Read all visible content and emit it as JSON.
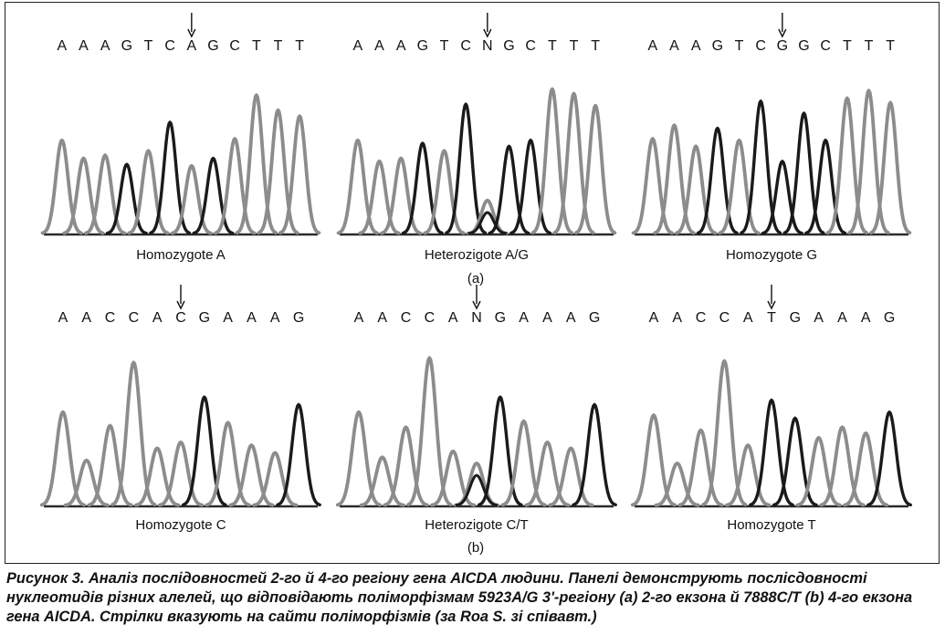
{
  "figure": {
    "subfigure_a_label": "(a)",
    "subfigure_b_label": "(b)",
    "panels": [
      {
        "sequence": [
          "A",
          "A",
          "A",
          "G",
          "T",
          "C",
          "A",
          "G",
          "C",
          "T",
          "T",
          "T"
        ],
        "arrow_index": 6,
        "label": "Homozygote A",
        "peaks": [
          {
            "h": 0.62,
            "c": "g"
          },
          {
            "h": 0.5,
            "c": "g"
          },
          {
            "h": 0.52,
            "c": "g"
          },
          {
            "h": 0.46,
            "c": "b"
          },
          {
            "h": 0.55,
            "c": "g"
          },
          {
            "h": 0.74,
            "c": "b"
          },
          {
            "h": 0.45,
            "c": "g"
          },
          {
            "h": 0.5,
            "c": "b"
          },
          {
            "h": 0.63,
            "c": "g"
          },
          {
            "h": 0.92,
            "c": "g"
          },
          {
            "h": 0.82,
            "c": "g"
          },
          {
            "h": 0.78,
            "c": "g"
          }
        ]
      },
      {
        "sequence": [
          "A",
          "A",
          "A",
          "G",
          "T",
          "C",
          "N",
          "G",
          "C",
          "T",
          "T",
          "T"
        ],
        "arrow_index": 6,
        "label": "Heterozigote A/G",
        "peaks": [
          {
            "h": 0.62,
            "c": "g"
          },
          {
            "h": 0.48,
            "c": "g"
          },
          {
            "h": 0.5,
            "c": "g"
          },
          {
            "h": 0.6,
            "c": "b"
          },
          {
            "h": 0.55,
            "c": "g"
          },
          {
            "h": 0.86,
            "c": "b"
          },
          {
            "h": 0.22,
            "c": "g",
            "h2": 0.14
          },
          {
            "h": 0.58,
            "c": "b"
          },
          {
            "h": 0.62,
            "c": "b"
          },
          {
            "h": 0.96,
            "c": "g"
          },
          {
            "h": 0.93,
            "c": "g"
          },
          {
            "h": 0.85,
            "c": "g"
          }
        ]
      },
      {
        "sequence": [
          "A",
          "A",
          "A",
          "G",
          "T",
          "C",
          "G",
          "G",
          "C",
          "T",
          "T",
          "T"
        ],
        "arrow_index": 6,
        "label": "Homozygote G",
        "peaks": [
          {
            "h": 0.63,
            "c": "g"
          },
          {
            "h": 0.72,
            "c": "g"
          },
          {
            "h": 0.58,
            "c": "g"
          },
          {
            "h": 0.7,
            "c": "b"
          },
          {
            "h": 0.62,
            "c": "g"
          },
          {
            "h": 0.88,
            "c": "b"
          },
          {
            "h": 0.48,
            "c": "b"
          },
          {
            "h": 0.8,
            "c": "b"
          },
          {
            "h": 0.62,
            "c": "b"
          },
          {
            "h": 0.9,
            "c": "g"
          },
          {
            "h": 0.95,
            "c": "g"
          },
          {
            "h": 0.87,
            "c": "g"
          }
        ]
      },
      {
        "sequence": [
          "A",
          "A",
          "C",
          "C",
          "A",
          "C",
          "G",
          "A",
          "A",
          "A",
          "G"
        ],
        "arrow_index": 5,
        "label": "Homozygote C",
        "peaks": [
          {
            "h": 0.62,
            "c": "g"
          },
          {
            "h": 0.3,
            "c": "g"
          },
          {
            "h": 0.53,
            "c": "g"
          },
          {
            "h": 0.95,
            "c": "g"
          },
          {
            "h": 0.38,
            "c": "g"
          },
          {
            "h": 0.42,
            "c": "g"
          },
          {
            "h": 0.72,
            "c": "b"
          },
          {
            "h": 0.55,
            "c": "g"
          },
          {
            "h": 0.4,
            "c": "g"
          },
          {
            "h": 0.35,
            "c": "g"
          },
          {
            "h": 0.67,
            "c": "b"
          }
        ]
      },
      {
        "sequence": [
          "A",
          "A",
          "C",
          "C",
          "A",
          "N",
          "G",
          "A",
          "A",
          "A",
          "G"
        ],
        "arrow_index": 5,
        "label": "Heterozigote C/T",
        "peaks": [
          {
            "h": 0.62,
            "c": "g"
          },
          {
            "h": 0.32,
            "c": "g"
          },
          {
            "h": 0.52,
            "c": "g"
          },
          {
            "h": 0.98,
            "c": "g"
          },
          {
            "h": 0.36,
            "c": "g"
          },
          {
            "h": 0.28,
            "c": "g",
            "h2": 0.2
          },
          {
            "h": 0.72,
            "c": "b"
          },
          {
            "h": 0.56,
            "c": "g"
          },
          {
            "h": 0.42,
            "c": "g"
          },
          {
            "h": 0.38,
            "c": "g"
          },
          {
            "h": 0.67,
            "c": "b"
          }
        ]
      },
      {
        "sequence": [
          "A",
          "A",
          "C",
          "C",
          "A",
          "T",
          "G",
          "A",
          "A",
          "A",
          "G"
        ],
        "arrow_index": 5,
        "label": "Homozygote T",
        "peaks": [
          {
            "h": 0.6,
            "c": "g"
          },
          {
            "h": 0.28,
            "c": "g"
          },
          {
            "h": 0.5,
            "c": "g"
          },
          {
            "h": 0.96,
            "c": "g"
          },
          {
            "h": 0.4,
            "c": "g"
          },
          {
            "h": 0.7,
            "c": "b"
          },
          {
            "h": 0.58,
            "c": "b"
          },
          {
            "h": 0.45,
            "c": "g"
          },
          {
            "h": 0.52,
            "c": "g"
          },
          {
            "h": 0.48,
            "c": "g"
          },
          {
            "h": 0.62,
            "c": "b"
          }
        ]
      }
    ]
  },
  "caption": "Рисунок 3. Аналіз послідовностей 2-го й 4-го регіону гена AICDA людини. Панелі демонструють посліcдовності нуклеотидів різних алелей, що відповідають поліморфізмам 5923A/G 3'-регіону (a) 2-го екзона й 7888C/T (b) 4-го екзона гена AICDA. Стрілки вказують на сайти поліморфізмів (за Roa S. зі співавт.)",
  "colors": {
    "trace_gray": "#8c8c8c",
    "trace_black": "#1a1a1a",
    "frame": "#222222"
  }
}
